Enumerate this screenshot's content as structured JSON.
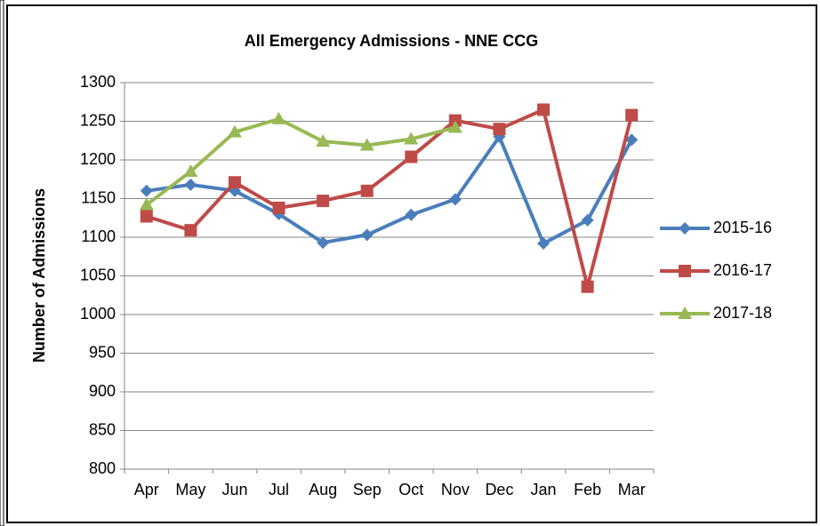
{
  "chart_data": {
    "type": "line",
    "title": "All Emergency Admissions - NNE CCG",
    "y_label": "Number of Admissions",
    "categories": [
      "Apr",
      "May",
      "Jun",
      "Jul",
      "Aug",
      "Sep",
      "Oct",
      "Nov",
      "Dec",
      "Jan",
      "Feb",
      "Mar"
    ],
    "series": [
      {
        "name": "2015-16",
        "color": "#4a7ebb",
        "marker": "diamond",
        "values": [
          1160,
          1168,
          1160,
          1130,
          1093,
          1103,
          1129,
          1149,
          1230,
          1092,
          1122,
          1226
        ]
      },
      {
        "name": "2016-17",
        "color": "#be4b48",
        "marker": "square",
        "values": [
          1127,
          1109,
          1171,
          1138,
          1147,
          1160,
          1204,
          1251,
          1240,
          1265,
          1036,
          1258
        ]
      },
      {
        "name": "2017-18",
        "color": "#98b954",
        "marker": "triangle",
        "values": [
          1142,
          1185,
          1236,
          1253,
          1224,
          1219,
          1227,
          1242,
          null,
          null,
          null,
          null
        ]
      }
    ],
    "ylim": [
      800,
      1300
    ],
    "yticks": [
      800,
      850,
      900,
      950,
      1000,
      1050,
      1100,
      1150,
      1200,
      1250,
      1300
    ],
    "grid": true,
    "legend": "right"
  }
}
